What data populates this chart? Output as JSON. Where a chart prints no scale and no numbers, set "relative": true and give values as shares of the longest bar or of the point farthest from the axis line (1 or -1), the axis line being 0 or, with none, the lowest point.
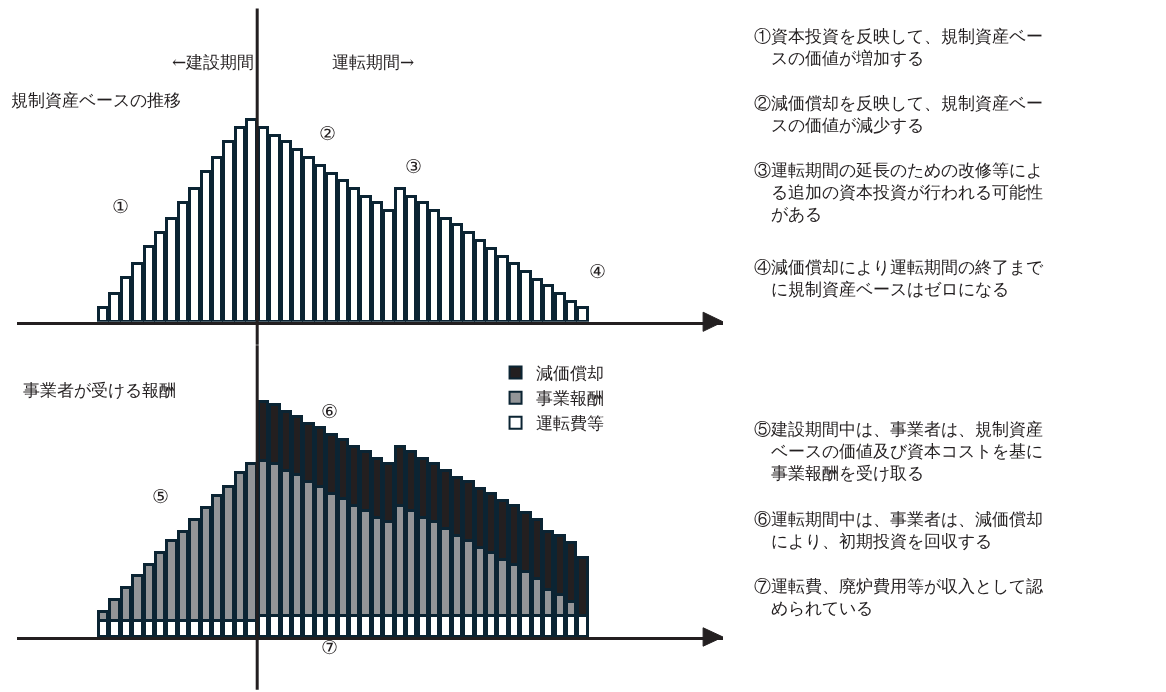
{
  "chart_data": [
    {
      "type": "bar",
      "title": "規制資産ベースの推移",
      "relative": true,
      "color": "#ffffff",
      "categories": [
        null,
        null,
        null,
        null,
        null,
        null,
        null,
        null,
        null,
        null,
        null,
        null,
        null,
        null,
        null,
        null,
        null,
        null,
        null,
        null,
        null,
        null,
        null,
        null,
        null,
        null,
        null,
        null,
        null,
        null,
        null,
        null,
        null,
        null,
        null,
        null,
        null,
        null,
        null,
        null,
        null,
        null,
        null
      ],
      "values": [
        0.07,
        0.14,
        0.22,
        0.29,
        0.37,
        0.44,
        0.51,
        0.59,
        0.66,
        0.74,
        0.81,
        0.89,
        0.96,
        1.0,
        0.96,
        0.92,
        0.89,
        0.85,
        0.81,
        0.77,
        0.73,
        0.7,
        0.66,
        0.62,
        0.59,
        0.55,
        0.66,
        0.62,
        0.59,
        0.55,
        0.51,
        0.48,
        0.44,
        0.4,
        0.36,
        0.32,
        0.29,
        0.25,
        0.21,
        0.18,
        0.14,
        0.1,
        0.07
      ],
      "annotations": [
        "←建設期間",
        "運転期間→",
        "①",
        "②",
        "③",
        "④"
      ]
    },
    {
      "type": "bar",
      "title": "事業者が受ける報酬",
      "relative": true,
      "stacked": true,
      "legend": "top right",
      "categories": [
        null,
        null,
        null,
        null,
        null,
        null,
        null,
        null,
        null,
        null,
        null,
        null,
        null,
        null,
        null,
        null,
        null,
        null,
        null,
        null,
        null,
        null,
        null,
        null,
        null,
        null,
        null,
        null,
        null,
        null,
        null,
        null,
        null,
        null,
        null,
        null,
        null,
        null,
        null,
        null,
        null,
        null,
        null
      ],
      "series": [
        {
          "name": "運転費等",
          "color": "#ffffff",
          "values": [
            0.07,
            0.07,
            0.07,
            0.07,
            0.07,
            0.07,
            0.07,
            0.07,
            0.07,
            0.07,
            0.07,
            0.07,
            0.07,
            0.07,
            0.09,
            0.09,
            0.09,
            0.09,
            0.09,
            0.09,
            0.09,
            0.09,
            0.09,
            0.09,
            0.09,
            0.09,
            0.09,
            0.09,
            0.09,
            0.09,
            0.09,
            0.09,
            0.09,
            0.09,
            0.09,
            0.09,
            0.09,
            0.09,
            0.09,
            0.09,
            0.09,
            0.09,
            0.09
          ]
        },
        {
          "name": "事業報酬",
          "color": "#939598",
          "values": [
            0.04,
            0.09,
            0.14,
            0.19,
            0.24,
            0.29,
            0.34,
            0.38,
            0.43,
            0.48,
            0.53,
            0.57,
            0.63,
            0.67,
            0.66,
            0.65,
            0.62,
            0.6,
            0.57,
            0.55,
            0.52,
            0.5,
            0.47,
            0.45,
            0.42,
            0.4,
            0.47,
            0.45,
            0.42,
            0.4,
            0.37,
            0.34,
            0.32,
            0.29,
            0.27,
            0.24,
            0.22,
            0.19,
            0.16,
            0.11,
            0.09,
            0.06,
            null
          ]
        },
        {
          "name": "減価償却",
          "color": "#231f20",
          "values": [
            null,
            null,
            null,
            null,
            null,
            null,
            null,
            null,
            null,
            null,
            null,
            null,
            null,
            null,
            0.25,
            0.25,
            0.25,
            0.25,
            0.25,
            0.25,
            0.25,
            0.25,
            0.25,
            0.25,
            0.25,
            0.25,
            0.25,
            0.25,
            0.25,
            0.25,
            0.25,
            0.25,
            0.25,
            0.25,
            0.25,
            0.25,
            0.25,
            0.25,
            0.25,
            0.25,
            0.25,
            0.25,
            0.25
          ]
        }
      ],
      "annotations": [
        "⑤",
        "⑥",
        "⑦"
      ]
    },
    {
      "type": "other",
      "annotations": [
        "①資本投資を反映して、規制資産ベースの価値が増加する",
        "②減価償却を反映して、規制資産ベースの価値が減少する",
        "③運転期間の延長のための改修等による追加の資本投資が行われる可能性がある",
        "④減価償却により運転期間の終了までに規制資産ベースはゼロになる",
        "⑤建設期間中は、事業者は、規制資産ベースの価値及び資本コストを基に事業報酬を受け取る",
        "⑥運転期間中は、事業者は、減価償却により、初期投資を回収する",
        "⑦運転費、廃炉費用等が収入として認められている"
      ]
    }
  ]
}
